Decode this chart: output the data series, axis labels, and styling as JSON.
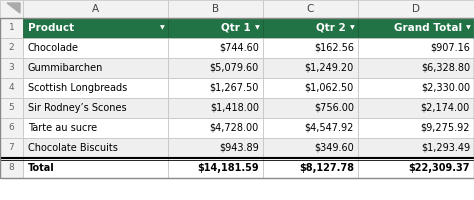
{
  "col_headers": [
    "Product",
    "Qtr 1",
    "Qtr 2",
    "Grand Total"
  ],
  "rows": [
    [
      "Chocolade",
      "$744.60",
      "$162.56",
      "$907.16"
    ],
    [
      "Gummibarchen",
      "$5,079.60",
      "$1,249.20",
      "$6,328.80"
    ],
    [
      "Scottish Longbreads",
      "$1,267.50",
      "$1,062.50",
      "$2,330.00"
    ],
    [
      "Sir Rodney’s Scones",
      "$1,418.00",
      "$756.00",
      "$2,174.00"
    ],
    [
      "Tarte au sucre",
      "$4,728.00",
      "$4,547.92",
      "$9,275.92"
    ],
    [
      "Chocolate Biscuits",
      "$943.89",
      "$349.60",
      "$1,293.49"
    ],
    [
      "Total",
      "$14,181.59",
      "$8,127.78",
      "$22,309.37"
    ]
  ],
  "header_bg": "#217346",
  "header_fg": "#FFFFFF",
  "row_bg_even": "#FFFFFF",
  "row_bg_odd": "#EFEFEF",
  "total_row_bg": "#FFFFFF",
  "grid_color": "#C0C0C0",
  "row_num_bg": "#F2F2F2",
  "row_num_fg": "#666666",
  "excel_header_bg": "#F2F2F2",
  "excel_header_fg": "#444444",
  "header_font_size": 7.5,
  "cell_font_size": 7.0,
  "row_num_font_size": 6.5
}
